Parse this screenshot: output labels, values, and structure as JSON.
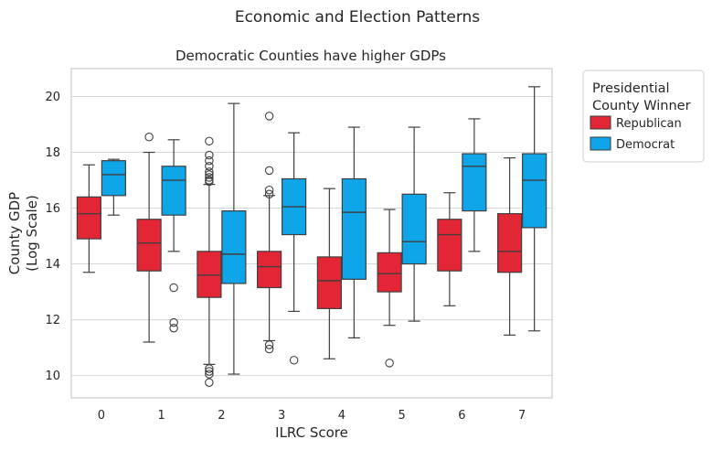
{
  "chart_data": {
    "type": "boxplot",
    "suptitle": "Economic and Election Patterns",
    "title": "Democratic Counties have higher GDPs",
    "xlabel": "ILRC Score",
    "ylabel_lines": [
      "County GDP",
      "(Log Scale)"
    ],
    "categories": [
      "0",
      "1",
      "2",
      "3",
      "4",
      "5",
      "6",
      "7"
    ],
    "ylim": [
      9.2,
      21.0
    ],
    "yticks": [
      10,
      12,
      14,
      16,
      18,
      20
    ],
    "grid": true,
    "legend": {
      "title_lines": [
        "Presidential",
        "County Winner"
      ],
      "placement": "outside-right"
    },
    "series": [
      {
        "name": "Republican",
        "color": "#e32636",
        "boxes": [
          {
            "whislo": 13.7,
            "q1": 14.9,
            "med": 15.8,
            "q3": 16.4,
            "whishi": 17.55,
            "fliers": []
          },
          {
            "whislo": 11.2,
            "q1": 13.75,
            "med": 14.75,
            "q3": 15.6,
            "whishi": 18.0,
            "fliers": [
              18.55
            ]
          },
          {
            "whislo": 10.4,
            "q1": 12.8,
            "med": 13.6,
            "q3": 14.45,
            "whishi": 16.85,
            "fliers": [
              18.4,
              17.9,
              17.7,
              17.5,
              17.3,
              17.2,
              17.1,
              17.0,
              16.95,
              10.25,
              10.15,
              10.05,
              9.75
            ]
          },
          {
            "whislo": 11.25,
            "q1": 13.15,
            "med": 13.9,
            "q3": 14.45,
            "whishi": 16.45,
            "fliers": [
              19.3,
              17.35,
              16.65,
              16.5,
              11.1,
              10.95
            ]
          },
          {
            "whislo": 10.6,
            "q1": 12.4,
            "med": 13.4,
            "q3": 14.25,
            "whishi": 16.7,
            "fliers": []
          },
          {
            "whislo": 11.8,
            "q1": 13.0,
            "med": 13.65,
            "q3": 14.4,
            "whishi": 15.95,
            "fliers": [
              10.45
            ]
          },
          {
            "whislo": 12.5,
            "q1": 13.75,
            "med": 15.05,
            "q3": 15.6,
            "whishi": 16.55,
            "fliers": []
          },
          {
            "whislo": 11.45,
            "q1": 13.7,
            "med": 14.45,
            "q3": 15.8,
            "whishi": 17.8,
            "fliers": []
          }
        ]
      },
      {
        "name": "Democrat",
        "color": "#0ea5e9",
        "boxes": [
          {
            "whislo": 15.75,
            "q1": 16.45,
            "med": 17.2,
            "q3": 17.7,
            "whishi": 17.75,
            "fliers": []
          },
          {
            "whislo": 14.45,
            "q1": 15.75,
            "med": 17.0,
            "q3": 17.5,
            "whishi": 18.45,
            "fliers": [
              13.15,
              11.9,
              11.7
            ]
          },
          {
            "whislo": 10.05,
            "q1": 13.3,
            "med": 14.35,
            "q3": 15.9,
            "whishi": 19.75,
            "fliers": []
          },
          {
            "whislo": 12.3,
            "q1": 15.05,
            "med": 16.05,
            "q3": 17.05,
            "whishi": 18.7,
            "fliers": [
              10.55
            ]
          },
          {
            "whislo": 11.35,
            "q1": 13.45,
            "med": 15.85,
            "q3": 17.05,
            "whishi": 18.9,
            "fliers": []
          },
          {
            "whislo": 11.95,
            "q1": 14.0,
            "med": 14.8,
            "q3": 16.5,
            "whishi": 18.9,
            "fliers": []
          },
          {
            "whislo": 14.45,
            "q1": 15.9,
            "med": 17.5,
            "q3": 17.95,
            "whishi": 19.2,
            "fliers": []
          },
          {
            "whislo": 11.6,
            "q1": 15.3,
            "med": 17.0,
            "q3": 17.95,
            "whishi": 20.35,
            "fliers": []
          }
        ]
      }
    ]
  }
}
